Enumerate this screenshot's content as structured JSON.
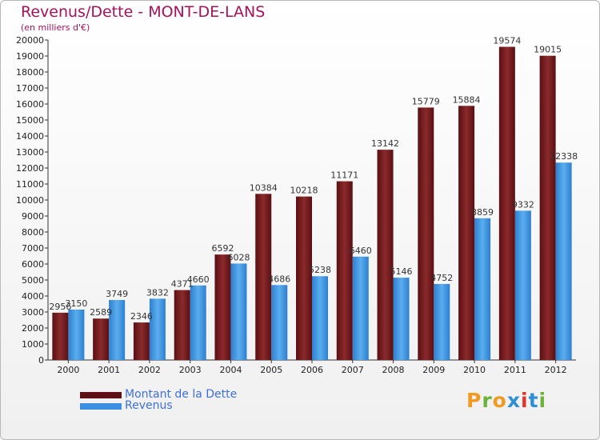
{
  "chart_data": {
    "type": "bar",
    "title": "Revenus/Dette - MONT-DE-LANS",
    "subtitle": "(en milliers d'€)",
    "categories": [
      "2000",
      "2001",
      "2002",
      "2003",
      "2004",
      "2005",
      "2006",
      "2007",
      "2008",
      "2009",
      "2010",
      "2011",
      "2012"
    ],
    "series": [
      {
        "name": "Montant de la Dette",
        "color": "#6e1518",
        "values": [
          2956,
          2589,
          2346,
          4371,
          6592,
          10384,
          10218,
          11171,
          13142,
          15779,
          15884,
          19574,
          19015
        ]
      },
      {
        "name": "Revenus",
        "color": "#3a8fe0",
        "values": [
          3150,
          3749,
          3832,
          4660,
          6028,
          4686,
          5238,
          6460,
          5146,
          4752,
          8859,
          9332,
          12338
        ]
      }
    ],
    "ylim": [
      0,
      20000
    ],
    "ytick_step": 1000,
    "grid": false,
    "legend": "bottom-left"
  },
  "logo": {
    "text": "Proxiti",
    "colors": [
      "#f29a1f",
      "#6bb33a",
      "#f29a1f",
      "#2f8fd6",
      "#e6332a",
      "#2f8fd6",
      "#6bb33a"
    ]
  }
}
